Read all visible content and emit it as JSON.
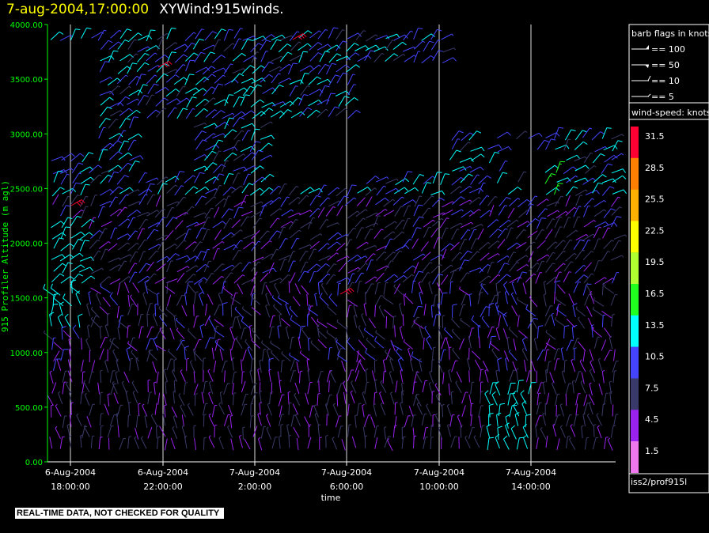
{
  "header": {
    "date_time": "7-aug-2004,17:00:00",
    "title": "XYWind:915winds."
  },
  "notice": "REAL-TIME DATA, NOT CHECKED FOR QUALITY",
  "legend": {
    "barb_title": "barb flags in knots",
    "barb_items": [
      "== 100",
      "== 50",
      "== 10",
      "== 5"
    ],
    "speed_title": "wind-speed: knots",
    "speed_scale": [
      {
        "label": "31.5",
        "color": "#ff0033"
      },
      {
        "label": "28.5",
        "color": "#ff8000"
      },
      {
        "label": "25.5",
        "color": "#ffb000"
      },
      {
        "label": "22.5",
        "color": "#ffff00"
      },
      {
        "label": "19.5",
        "color": "#b0ff30"
      },
      {
        "label": "16.5",
        "color": "#20ff20"
      },
      {
        "label": "13.5",
        "color": "#00ffff"
      },
      {
        "label": "10.5",
        "color": "#4444ff"
      },
      {
        "label": "7.5",
        "color": "#3a3a6a"
      },
      {
        "label": "4.5",
        "color": "#9922ee"
      },
      {
        "label": "1.5",
        "color": "#ee77ee"
      }
    ],
    "source": "iss2/prof915l"
  },
  "chart_data": {
    "type": "scatter",
    "xlabel": "time",
    "ylabel": "915 Profiler Altitude (m agl)",
    "ylim": [
      0,
      4000
    ],
    "y_ticks": [
      "0.00",
      "500.00",
      "1000.00",
      "1500.00",
      "2000.00",
      "2500.00",
      "3000.00",
      "3500.00",
      "4000.00"
    ],
    "x_ticks": [
      {
        "line1": "6-Aug-2004",
        "line2": "18:00:00"
      },
      {
        "line1": "6-Aug-2004",
        "line2": "22:00:00"
      },
      {
        "line1": "7-Aug-2004",
        "line2": "2:00:00"
      },
      {
        "line1": "7-Aug-2004",
        "line2": "6:00:00"
      },
      {
        "line1": "7-Aug-2004",
        "line2": "10:00:00"
      },
      {
        "line1": "7-Aug-2004",
        "line2": "14:00:00"
      }
    ],
    "x_start": "2004-08-06 17:00",
    "x_end": "2004-08-07 16:00",
    "grid_vertical": true,
    "marks": "wind barbs"
  }
}
